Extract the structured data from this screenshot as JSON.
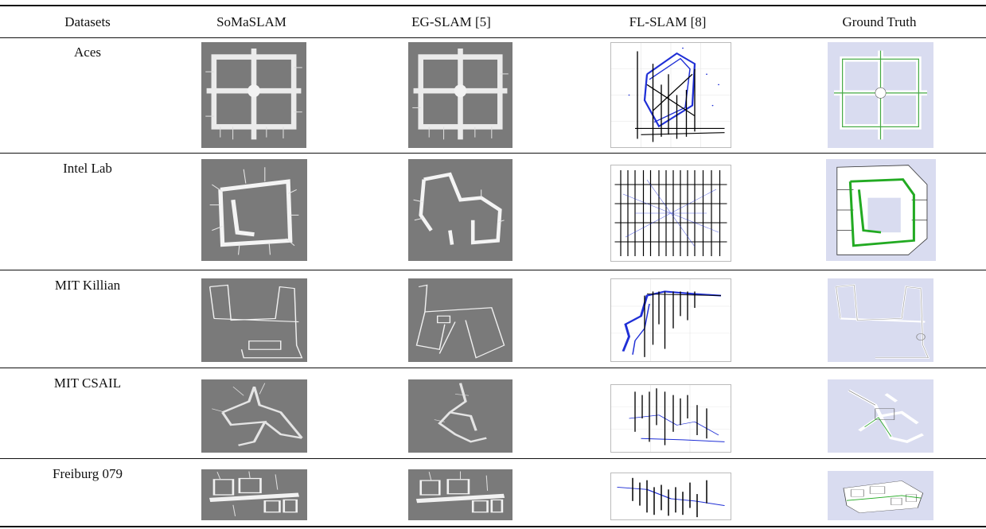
{
  "table": {
    "columns": [
      "Datasets",
      "SoMaSLAM",
      "EG-SLAM [5]",
      "FL-SLAM [8]",
      "Ground Truth"
    ],
    "rows": [
      {
        "dataset": "Aces"
      },
      {
        "dataset": "Intel Lab"
      },
      {
        "dataset": "MIT Killian"
      },
      {
        "dataset": "MIT CSAIL"
      },
      {
        "dataset": "Freiburg 079"
      }
    ]
  },
  "colors": {
    "map_background": "#7a7a7a",
    "ground_truth_background": "#d9dcf0",
    "trajectory_blue": "#1f2fd6",
    "ground_truth_path": "#22aa22"
  }
}
